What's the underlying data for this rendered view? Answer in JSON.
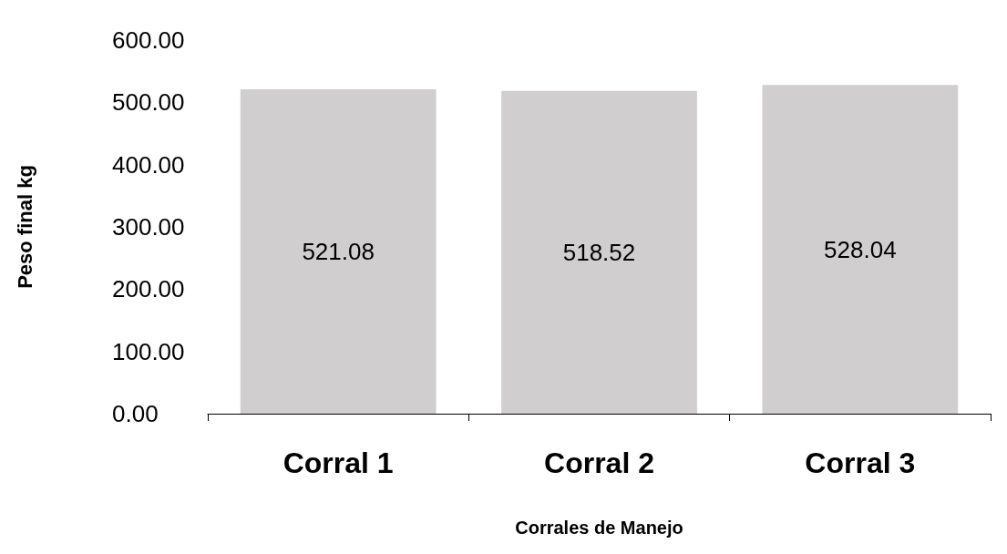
{
  "chart_data": {
    "type": "bar",
    "xlabel": "Corrales de Manejo",
    "ylabel": "Peso final kg",
    "categories": [
      "Corral 1",
      "Corral 2",
      "Corral 3"
    ],
    "values": [
      521.08,
      518.52,
      528.04
    ],
    "color": "#d0cecf",
    "ylim": [
      0,
      600
    ],
    "yticks": [
      {
        "value": 0,
        "label": "0.00"
      },
      {
        "value": 100,
        "label": "100.00"
      },
      {
        "value": 200,
        "label": "200.00"
      },
      {
        "value": 300,
        "label": "300.00"
      },
      {
        "value": 400,
        "label": "400.00"
      },
      {
        "value": 500,
        "label": "500.00"
      },
      {
        "value": 600,
        "label": "600.00"
      }
    ],
    "grid": false,
    "data_labels": true
  }
}
